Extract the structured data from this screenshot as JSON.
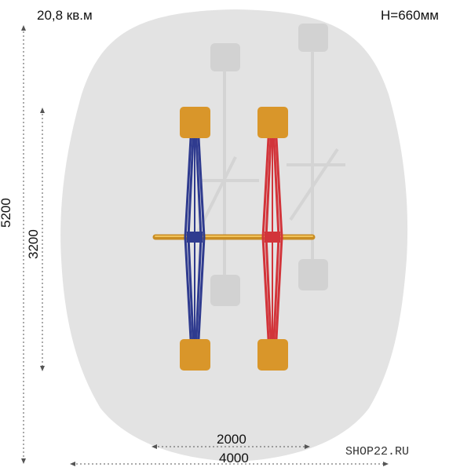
{
  "area": "20,8 кв.м",
  "height": "H=660мм",
  "dimensions": {
    "overall_height": "5200",
    "equipment_height": "3200",
    "equipment_width": "2000",
    "overall_width": "4000"
  },
  "watermark": "SHOP22.RU",
  "colors": {
    "zone": "#e3e3e3",
    "seat": "#d9962a",
    "blue_arm": "#2f3b8f",
    "red_arm": "#d2343a",
    "axle": "#e0a23a",
    "dim_line": "#555555"
  }
}
